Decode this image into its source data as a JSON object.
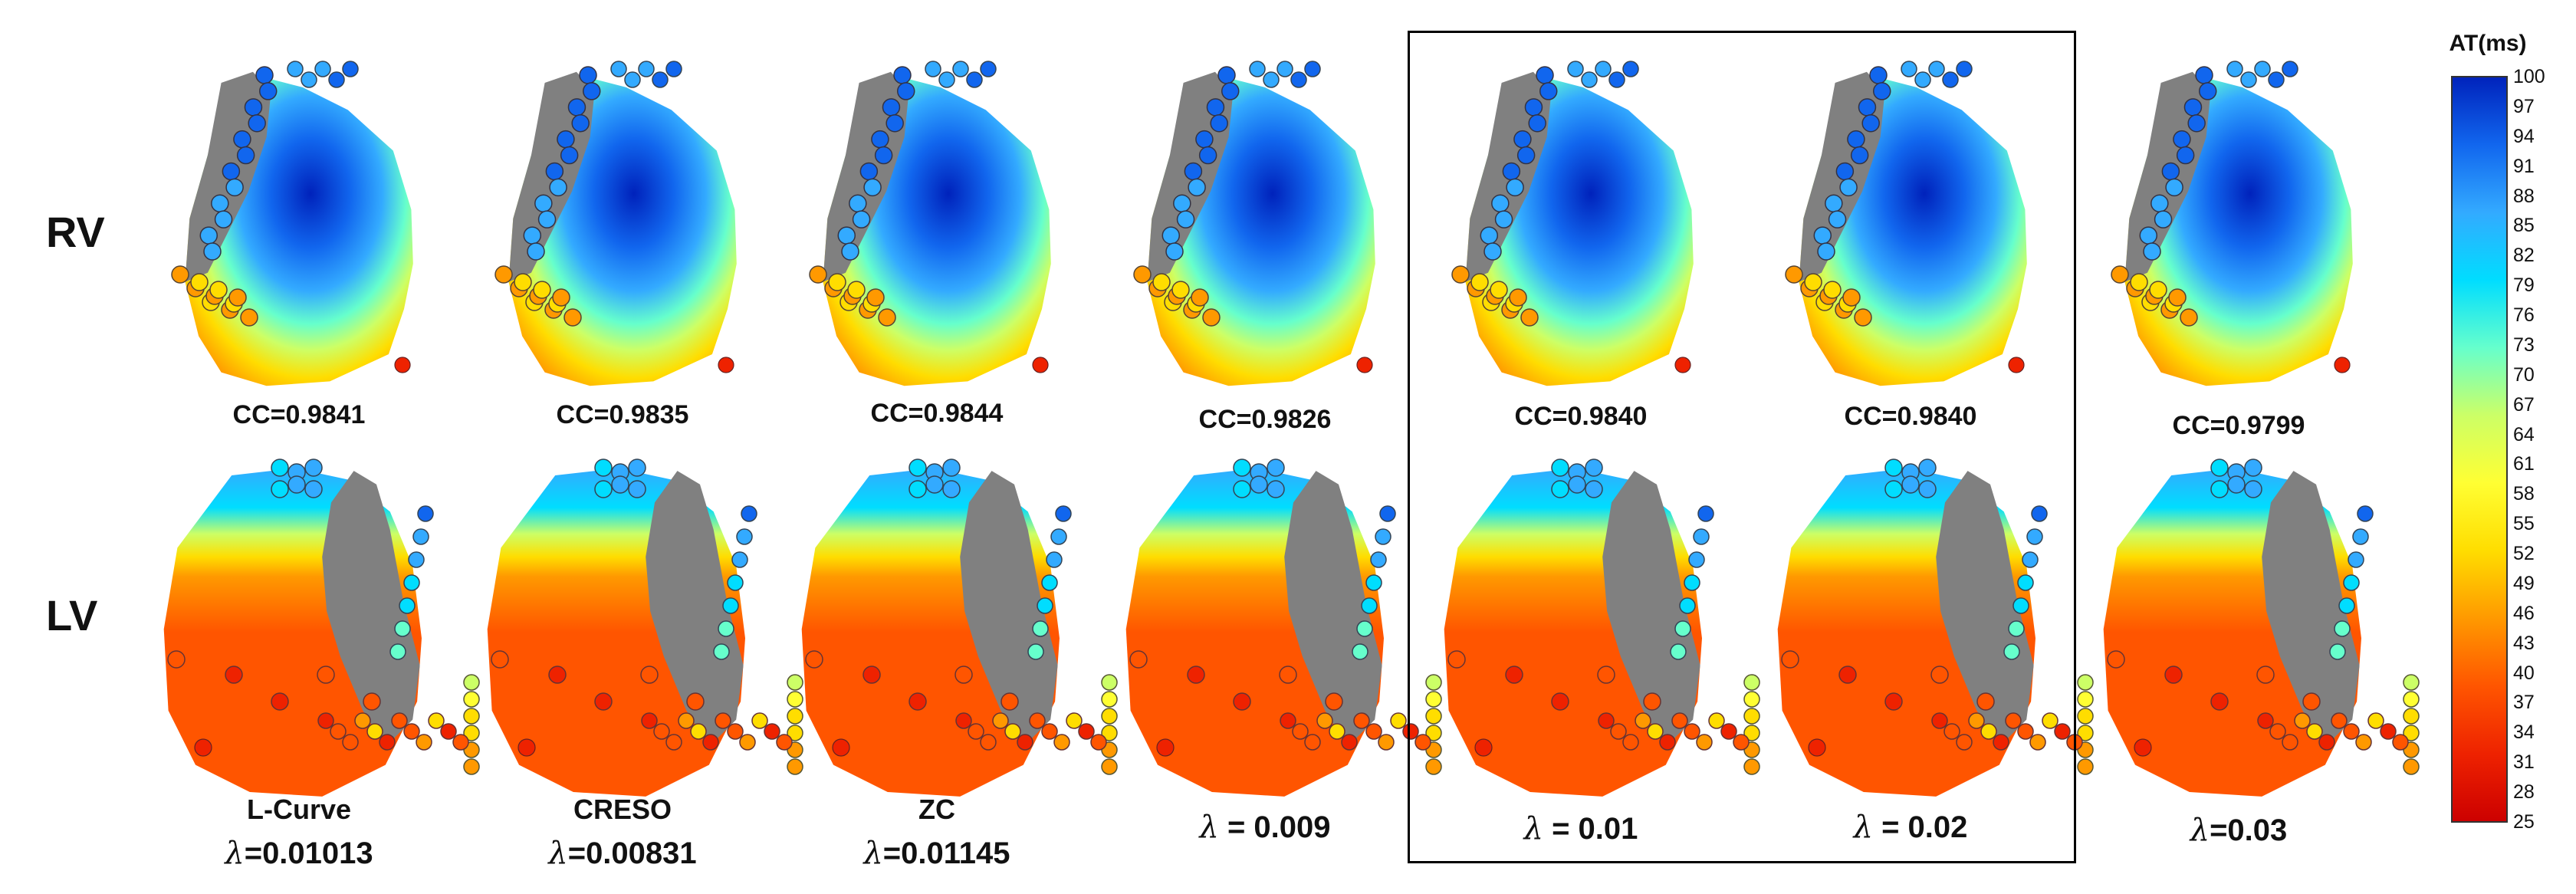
{
  "row_labels": {
    "rv": "RV",
    "lv": "LV"
  },
  "columns": [
    {
      "cc": "CC=0.9841",
      "method": "L-Curve",
      "lambda_sym": "λ",
      "lambda_text": "=0.01013"
    },
    {
      "cc": "CC=0.9835",
      "method": "CRESO",
      "lambda_sym": "λ",
      "lambda_text": "=0.00831"
    },
    {
      "cc": "CC=0.9844",
      "method": "ZC",
      "lambda_sym": "λ",
      "lambda_text": "=0.01145"
    },
    {
      "cc": "CC=0.9826",
      "method": "",
      "lambda_sym": "λ",
      "lambda_text": " = 0.009"
    },
    {
      "cc": "CC=0.9840",
      "method": "",
      "lambda_sym": "λ",
      "lambda_text": " = 0.01"
    },
    {
      "cc": "CC=0.9840",
      "method": "",
      "lambda_sym": "λ",
      "lambda_text": " = 0.02"
    },
    {
      "cc": "CC=0.9799",
      "method": "",
      "lambda_sym": "λ",
      "lambda_text": "=0.03"
    }
  ],
  "colorbar": {
    "title": "AT(ms)",
    "ticks": [
      "100",
      "97",
      "94",
      "91",
      "88",
      "85",
      "82",
      "79",
      "76",
      "73",
      "70",
      "67",
      "64",
      "61",
      "58",
      "55",
      "52",
      "49",
      "46",
      "43",
      "40",
      "37",
      "34",
      "31",
      "28",
      "25"
    ],
    "min": 25,
    "max": 100
  },
  "colors": {
    "gray_region": "#808080",
    "stops": [
      "#cc0000",
      "#ee2200",
      "#ff5500",
      "#ff9900",
      "#ffdd00",
      "#ffff33",
      "#ccff66",
      "#66ffcc",
      "#00ddff",
      "#33aaff",
      "#1166ee",
      "#0022bb"
    ]
  }
}
